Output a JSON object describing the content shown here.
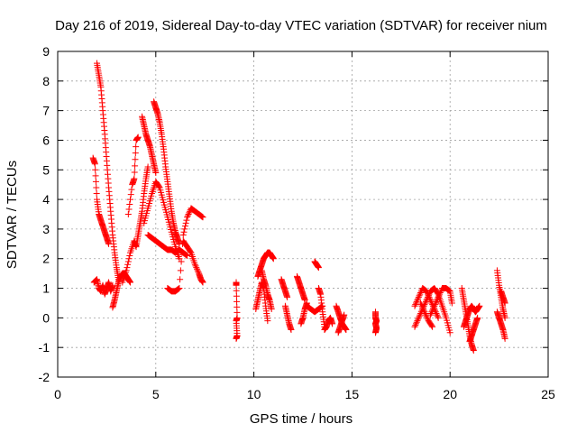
{
  "chart_data": {
    "type": "scatter",
    "title": "Day 216 of 2019, Sidereal Day-to-day VTEC variation (SDTVAR) for receiver nium",
    "xlabel": "GPS time / hours",
    "ylabel": "SDTVAR / TECUs",
    "xlim": [
      0,
      25
    ],
    "ylim": [
      -2,
      9
    ],
    "xticks": [
      0,
      5,
      10,
      15,
      20,
      25
    ],
    "yticks": [
      -2,
      -1,
      0,
      1,
      2,
      3,
      4,
      5,
      6,
      7,
      8,
      9
    ],
    "grid": true,
    "marker": "+",
    "color": "#ff0000",
    "series": [
      {
        "name": "SDTVAR",
        "tracks": [
          {
            "x": [
              1.8,
              1.9,
              2.0,
              2.1,
              2.2,
              2.3,
              2.4,
              2.5,
              2.6
            ],
            "y": [
              5.4,
              5.2,
              4.0,
              3.5,
              3.3,
              3.1,
              2.9,
              2.7,
              2.5
            ]
          },
          {
            "x": [
              2.0,
              2.1,
              2.2,
              2.3,
              2.4,
              2.5,
              2.6,
              2.7,
              2.8,
              2.9,
              3.0,
              3.1
            ],
            "y": [
              8.6,
              8.2,
              7.8,
              7.0,
              6.2,
              5.3,
              4.4,
              3.6,
              2.8,
              2.2,
              1.7,
              1.3
            ]
          },
          {
            "x": [
              1.85,
              2.0,
              2.1,
              2.2,
              2.3,
              2.4,
              2.5,
              2.6,
              2.7,
              2.8
            ],
            "y": [
              1.2,
              1.3,
              1.0,
              0.9,
              1.1,
              0.8,
              1.0,
              1.2,
              0.9,
              1.1
            ]
          },
          {
            "x": [
              2.8,
              2.9,
              3.0,
              3.1,
              3.2,
              3.3,
              3.4,
              3.5,
              3.6,
              3.7
            ],
            "y": [
              0.35,
              0.6,
              0.9,
              1.2,
              1.4,
              1.5,
              1.5,
              1.4,
              1.3,
              1.2
            ]
          },
          {
            "x": [
              3.3,
              3.5,
              3.7,
              3.9,
              4.0,
              4.1,
              4.2,
              4.3,
              4.4,
              4.5,
              4.6
            ],
            "y": [
              1.2,
              1.6,
              2.2,
              2.6,
              2.4,
              2.8,
              3.2,
              3.6,
              4.2,
              4.7,
              5.1
            ]
          },
          {
            "x": [
              3.6,
              3.8,
              3.9,
              4.0,
              4.1
            ],
            "y": [
              3.5,
              4.5,
              4.7,
              6.0,
              6.1
            ]
          },
          {
            "x": [
              4.3,
              4.4,
              4.5,
              4.6,
              4.7,
              4.8,
              4.9,
              5.0
            ],
            "y": [
              6.8,
              6.5,
              6.2,
              6.0,
              5.8,
              5.5,
              5.2,
              4.9
            ]
          },
          {
            "x": [
              4.9,
              5.0,
              5.1,
              5.2,
              5.3,
              5.4,
              5.5,
              5.6,
              5.7,
              5.8,
              5.9,
              6.0,
              6.1,
              6.2
            ],
            "y": [
              7.3,
              7.1,
              6.9,
              6.6,
              6.2,
              5.7,
              5.1,
              4.6,
              4.1,
              3.6,
              3.2,
              2.9,
              2.7,
              2.5
            ]
          },
          {
            "x": [
              4.6,
              4.8,
              5.0,
              5.2,
              5.4,
              5.6,
              5.8,
              6.0,
              6.2,
              6.4,
              6.6
            ],
            "y": [
              2.8,
              2.7,
              2.6,
              2.5,
              2.4,
              2.3,
              2.3,
              2.2,
              2.3,
              2.2,
              2.1
            ]
          },
          {
            "x": [
              4.4,
              4.6,
              4.8,
              5.0,
              5.2,
              5.4,
              5.6,
              5.8,
              6.0,
              6.2
            ],
            "y": [
              3.2,
              3.7,
              4.2,
              4.6,
              4.4,
              3.9,
              3.4,
              2.9,
              2.4,
              2.0
            ]
          },
          {
            "x": [
              5.6,
              5.8,
              6.0,
              6.2,
              6.4,
              6.6,
              6.8,
              7.0,
              7.2,
              7.4
            ],
            "y": [
              1.0,
              0.9,
              0.9,
              1.0,
              2.8,
              3.4,
              3.7,
              3.6,
              3.5,
              3.4
            ]
          },
          {
            "x": [
              6.4,
              6.6,
              6.8,
              7.0,
              7.2,
              7.3,
              7.4
            ],
            "y": [
              2.6,
              2.4,
              2.2,
              1.8,
              1.5,
              1.3,
              1.2
            ]
          },
          {
            "x": [
              9.1,
              9.1,
              9.15,
              9.1,
              9.15,
              9.1
            ],
            "y": [
              1.2,
              1.1,
              0.0,
              -0.1,
              -0.6,
              -0.7
            ]
          },
          {
            "x": [
              10.2,
              10.3,
              10.4,
              10.5,
              10.6,
              10.7,
              10.8,
              10.9,
              11.0
            ],
            "y": [
              1.4,
              1.6,
              1.8,
              2.0,
              2.1,
              2.2,
              2.2,
              2.1,
              2.0
            ]
          },
          {
            "x": [
              10.1,
              10.2,
              10.3,
              10.4,
              10.5,
              10.6,
              10.7
            ],
            "y": [
              0.3,
              0.6,
              0.9,
              1.2,
              1.0,
              0.4,
              -0.1
            ]
          },
          {
            "x": [
              10.4,
              10.5,
              10.6,
              10.7,
              10.8,
              10.9
            ],
            "y": [
              1.6,
              1.3,
              1.1,
              0.8,
              0.6,
              0.3
            ]
          },
          {
            "x": [
              11.4,
              11.5,
              11.6,
              11.7
            ],
            "y": [
              1.3,
              1.1,
              0.9,
              0.7
            ]
          },
          {
            "x": [
              11.6,
              11.7,
              11.8,
              11.9
            ],
            "y": [
              0.4,
              0.1,
              -0.2,
              -0.4
            ]
          },
          {
            "x": [
              12.2,
              12.3,
              12.4,
              12.5,
              12.6
            ],
            "y": [
              1.4,
              1.2,
              1.0,
              0.8,
              0.6
            ]
          },
          {
            "x": [
              12.4,
              12.5,
              12.6,
              12.7
            ],
            "y": [
              -0.2,
              0.0,
              0.3,
              0.5
            ]
          },
          {
            "x": [
              12.7,
              12.9,
              13.1,
              13.3,
              13.5
            ],
            "y": [
              0.4,
              0.3,
              0.2,
              0.3,
              0.4
            ]
          },
          {
            "x": [
              13.1,
              13.2,
              13.3
            ],
            "y": [
              1.9,
              1.8,
              1.7
            ]
          },
          {
            "x": [
              13.3,
              13.4,
              13.5,
              13.6
            ],
            "y": [
              1.0,
              0.8,
              0.2,
              -0.3
            ]
          },
          {
            "x": [
              13.6,
              13.7,
              13.8,
              13.9,
              14.0
            ],
            "y": [
              -0.4,
              -0.3,
              -0.1,
              0.0,
              -0.2
            ]
          },
          {
            "x": [
              14.2,
              14.3,
              14.4,
              14.5,
              14.6,
              14.7
            ],
            "y": [
              0.4,
              0.2,
              0.0,
              -0.2,
              -0.3,
              -0.4
            ]
          },
          {
            "x": [
              14.3,
              14.4,
              14.5,
              14.6
            ],
            "y": [
              -0.5,
              -0.3,
              -0.1,
              0.1
            ]
          },
          {
            "x": [
              16.2,
              16.2,
              16.25,
              16.2,
              16.25,
              16.2
            ],
            "y": [
              0.2,
              0.0,
              -0.1,
              -0.2,
              -0.35,
              -0.5
            ]
          },
          {
            "x": [
              18.2,
              18.4,
              18.6,
              18.8,
              19.0,
              19.2,
              19.4
            ],
            "y": [
              0.4,
              0.7,
              1.0,
              0.9,
              0.6,
              0.3,
              0.0
            ]
          },
          {
            "x": [
              18.2,
              18.4,
              18.6,
              18.8,
              19.0,
              19.2,
              19.4,
              19.6,
              19.8,
              20.0
            ],
            "y": [
              -0.3,
              0.0,
              0.3,
              0.6,
              0.9,
              1.0,
              0.8,
              0.4,
              0.0,
              -0.5
            ]
          },
          {
            "x": [
              19.0,
              19.2,
              19.4,
              19.6,
              19.8,
              20.0,
              20.1
            ],
            "y": [
              0.1,
              0.4,
              0.7,
              1.0,
              1.0,
              0.9,
              0.5
            ]
          },
          {
            "x": [
              18.5,
              18.7,
              18.9,
              19.1
            ],
            "y": [
              0.5,
              0.2,
              -0.1,
              -0.3
            ]
          },
          {
            "x": [
              20.6,
              20.7,
              20.8,
              20.9,
              21.0,
              21.1,
              21.2
            ],
            "y": [
              1.0,
              0.6,
              0.2,
              -0.2,
              -0.6,
              -0.9,
              -1.1
            ]
          },
          {
            "x": [
              20.7,
              20.8,
              20.9,
              21.0,
              21.1,
              21.2,
              21.3,
              21.4,
              21.5
            ],
            "y": [
              -0.3,
              -0.1,
              0.1,
              0.3,
              0.4,
              0.3,
              0.2,
              0.3,
              0.4
            ]
          },
          {
            "x": [
              21.0,
              21.1,
              21.2,
              21.3,
              21.4
            ],
            "y": [
              -0.8,
              -0.6,
              -0.4,
              -0.2,
              0.0
            ]
          },
          {
            "x": [
              22.4,
              22.5,
              22.6,
              22.7,
              22.8
            ],
            "y": [
              1.6,
              1.1,
              0.7,
              0.3,
              0.0
            ]
          },
          {
            "x": [
              22.4,
              22.5,
              22.6,
              22.7,
              22.8
            ],
            "y": [
              0.2,
              0.0,
              -0.2,
              -0.4,
              -0.7
            ]
          },
          {
            "x": [
              22.6,
              22.7,
              22.8
            ],
            "y": [
              0.9,
              0.7,
              0.5
            ]
          }
        ]
      }
    ]
  }
}
